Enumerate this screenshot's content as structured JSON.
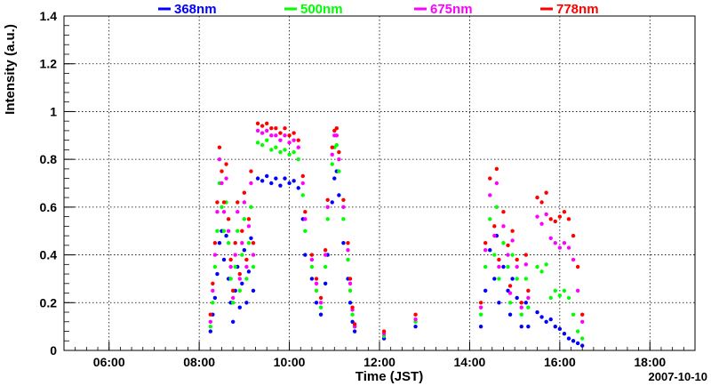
{
  "chart_data": {
    "type": "scatter",
    "title": "",
    "xlabel": "Time (JST)",
    "ylabel": "Intensity (a.u.)",
    "date_label": "2007-10-10",
    "x_units": "hours (JST)",
    "xlim": [
      5.0,
      19.0
    ],
    "ylim": [
      0,
      1.4
    ],
    "x_ticks": [
      {
        "value": 6,
        "label": "06:00"
      },
      {
        "value": 8,
        "label": "08:00"
      },
      {
        "value": 10,
        "label": "10:00"
      },
      {
        "value": 12,
        "label": "12:00"
      },
      {
        "value": 14,
        "label": "14:00"
      },
      {
        "value": 16,
        "label": "16:00"
      },
      {
        "value": 18,
        "label": "18:00"
      }
    ],
    "y_ticks": [
      {
        "value": 0,
        "label": "0"
      },
      {
        "value": 0.2,
        "label": "0.2"
      },
      {
        "value": 0.4,
        "label": "0.4"
      },
      {
        "value": 0.6,
        "label": "0.6"
      },
      {
        "value": 0.8,
        "label": "0.8"
      },
      {
        "value": 1.0,
        "label": "1"
      },
      {
        "value": 1.2,
        "label": "1.2"
      },
      {
        "value": 1.4,
        "label": "1.4"
      }
    ],
    "grid": true,
    "legend_position": "top",
    "series": [
      {
        "name": "368nm",
        "color": "#0000ff",
        "points": [
          [
            8.25,
            0.08
          ],
          [
            8.3,
            0.15
          ],
          [
            8.35,
            0.22
          ],
          [
            8.4,
            0.32
          ],
          [
            8.45,
            0.45
          ],
          [
            8.5,
            0.5
          ],
          [
            8.55,
            0.38
          ],
          [
            8.6,
            0.48
          ],
          [
            8.65,
            0.3
          ],
          [
            8.7,
            0.2
          ],
          [
            8.75,
            0.12
          ],
          [
            8.8,
            0.25
          ],
          [
            8.85,
            0.35
          ],
          [
            8.9,
            0.18
          ],
          [
            8.95,
            0.28
          ],
          [
            9.0,
            0.42
          ],
          [
            9.05,
            0.2
          ],
          [
            9.1,
            0.33
          ],
          [
            9.15,
            0.47
          ],
          [
            9.2,
            0.25
          ],
          [
            9.3,
            0.72
          ],
          [
            9.4,
            0.71
          ],
          [
            9.5,
            0.73
          ],
          [
            9.6,
            0.7
          ],
          [
            9.7,
            0.72
          ],
          [
            9.8,
            0.69
          ],
          [
            9.9,
            0.72
          ],
          [
            10.0,
            0.7
          ],
          [
            10.1,
            0.71
          ],
          [
            10.2,
            0.68
          ],
          [
            10.3,
            0.55
          ],
          [
            10.35,
            0.4
          ],
          [
            10.5,
            0.3
          ],
          [
            10.6,
            0.2
          ],
          [
            10.7,
            0.15
          ],
          [
            10.8,
            0.28
          ],
          [
            10.85,
            0.4
          ],
          [
            10.95,
            0.62
          ],
          [
            11.0,
            0.72
          ],
          [
            11.05,
            0.75
          ],
          [
            11.1,
            0.65
          ],
          [
            11.2,
            0.45
          ],
          [
            11.3,
            0.3
          ],
          [
            11.35,
            0.2
          ],
          [
            11.4,
            0.12
          ],
          [
            11.45,
            0.08
          ],
          [
            12.1,
            0.05
          ],
          [
            12.8,
            0.1
          ],
          [
            14.25,
            0.1
          ],
          [
            14.35,
            0.25
          ],
          [
            14.45,
            0.42
          ],
          [
            14.55,
            0.3
          ],
          [
            14.6,
            0.48
          ],
          [
            14.65,
            0.2
          ],
          [
            14.75,
            0.35
          ],
          [
            14.85,
            0.25
          ],
          [
            14.9,
            0.15
          ],
          [
            14.95,
            0.3
          ],
          [
            15.05,
            0.22
          ],
          [
            15.15,
            0.1
          ],
          [
            15.25,
            0.2
          ],
          [
            15.3,
            0.1
          ],
          [
            15.5,
            0.16
          ],
          [
            15.6,
            0.14
          ],
          [
            15.7,
            0.12
          ],
          [
            15.8,
            0.13
          ],
          [
            15.9,
            0.1
          ],
          [
            16.0,
            0.09
          ],
          [
            16.1,
            0.07
          ],
          [
            16.2,
            0.05
          ],
          [
            16.3,
            0.04
          ],
          [
            16.4,
            0.03
          ],
          [
            16.5,
            0.02
          ]
        ]
      },
      {
        "name": "500nm",
        "color": "#00ff00",
        "points": [
          [
            8.25,
            0.1
          ],
          [
            8.3,
            0.2
          ],
          [
            8.35,
            0.35
          ],
          [
            8.4,
            0.5
          ],
          [
            8.45,
            0.7
          ],
          [
            8.5,
            0.6
          ],
          [
            8.55,
            0.5
          ],
          [
            8.6,
            0.62
          ],
          [
            8.65,
            0.45
          ],
          [
            8.7,
            0.3
          ],
          [
            8.75,
            0.2
          ],
          [
            8.8,
            0.35
          ],
          [
            8.85,
            0.5
          ],
          [
            8.9,
            0.25
          ],
          [
            8.95,
            0.4
          ],
          [
            9.0,
            0.55
          ],
          [
            9.05,
            0.3
          ],
          [
            9.1,
            0.45
          ],
          [
            9.15,
            0.6
          ],
          [
            9.2,
            0.35
          ],
          [
            9.3,
            0.87
          ],
          [
            9.4,
            0.86
          ],
          [
            9.5,
            0.88
          ],
          [
            9.6,
            0.84
          ],
          [
            9.7,
            0.85
          ],
          [
            9.8,
            0.83
          ],
          [
            9.9,
            0.84
          ],
          [
            10.0,
            0.82
          ],
          [
            10.1,
            0.83
          ],
          [
            10.2,
            0.8
          ],
          [
            10.3,
            0.65
          ],
          [
            10.35,
            0.5
          ],
          [
            10.5,
            0.35
          ],
          [
            10.6,
            0.25
          ],
          [
            10.7,
            0.18
          ],
          [
            10.8,
            0.35
          ],
          [
            10.85,
            0.55
          ],
          [
            10.95,
            0.78
          ],
          [
            11.0,
            0.85
          ],
          [
            11.05,
            0.86
          ],
          [
            11.1,
            0.75
          ],
          [
            11.2,
            0.55
          ],
          [
            11.3,
            0.38
          ],
          [
            11.35,
            0.25
          ],
          [
            11.4,
            0.15
          ],
          [
            11.45,
            0.1
          ],
          [
            12.1,
            0.06
          ],
          [
            12.8,
            0.12
          ],
          [
            14.25,
            0.15
          ],
          [
            14.35,
            0.35
          ],
          [
            14.45,
            0.55
          ],
          [
            14.55,
            0.4
          ],
          [
            14.6,
            0.6
          ],
          [
            14.65,
            0.3
          ],
          [
            14.75,
            0.45
          ],
          [
            14.85,
            0.35
          ],
          [
            14.9,
            0.2
          ],
          [
            14.95,
            0.4
          ],
          [
            15.05,
            0.3
          ],
          [
            15.15,
            0.15
          ],
          [
            15.25,
            0.3
          ],
          [
            15.3,
            0.18
          ],
          [
            15.5,
            0.35
          ],
          [
            15.6,
            0.33
          ],
          [
            15.7,
            0.36
          ],
          [
            15.8,
            0.22
          ],
          [
            15.9,
            0.25
          ],
          [
            16.0,
            0.23
          ],
          [
            16.1,
            0.25
          ],
          [
            16.2,
            0.22
          ],
          [
            16.3,
            0.15
          ],
          [
            16.4,
            0.08
          ],
          [
            16.5,
            0.05
          ]
        ]
      },
      {
        "name": "675nm",
        "color": "#ff00ff",
        "points": [
          [
            8.25,
            0.12
          ],
          [
            8.3,
            0.25
          ],
          [
            8.35,
            0.4
          ],
          [
            8.4,
            0.58
          ],
          [
            8.45,
            0.8
          ],
          [
            8.5,
            0.7
          ],
          [
            8.55,
            0.58
          ],
          [
            8.6,
            0.72
          ],
          [
            8.65,
            0.5
          ],
          [
            8.7,
            0.35
          ],
          [
            8.75,
            0.22
          ],
          [
            8.8,
            0.4
          ],
          [
            8.85,
            0.58
          ],
          [
            8.9,
            0.3
          ],
          [
            8.95,
            0.45
          ],
          [
            9.0,
            0.62
          ],
          [
            9.05,
            0.35
          ],
          [
            9.1,
            0.52
          ],
          [
            9.15,
            0.7
          ],
          [
            9.2,
            0.4
          ],
          [
            9.3,
            0.92
          ],
          [
            9.4,
            0.91
          ],
          [
            9.5,
            0.92
          ],
          [
            9.6,
            0.9
          ],
          [
            9.7,
            0.9
          ],
          [
            9.8,
            0.88
          ],
          [
            9.9,
            0.9
          ],
          [
            10.0,
            0.87
          ],
          [
            10.1,
            0.88
          ],
          [
            10.2,
            0.85
          ],
          [
            10.3,
            0.7
          ],
          [
            10.35,
            0.55
          ],
          [
            10.5,
            0.38
          ],
          [
            10.6,
            0.28
          ],
          [
            10.7,
            0.2
          ],
          [
            10.8,
            0.4
          ],
          [
            10.85,
            0.6
          ],
          [
            10.95,
            0.82
          ],
          [
            11.0,
            0.9
          ],
          [
            11.05,
            0.9
          ],
          [
            11.1,
            0.8
          ],
          [
            11.2,
            0.6
          ],
          [
            11.3,
            0.42
          ],
          [
            11.35,
            0.28
          ],
          [
            11.4,
            0.17
          ],
          [
            11.45,
            0.1
          ],
          [
            12.1,
            0.07
          ],
          [
            12.8,
            0.13
          ],
          [
            14.25,
            0.18
          ],
          [
            14.35,
            0.42
          ],
          [
            14.45,
            0.65
          ],
          [
            14.55,
            0.48
          ],
          [
            14.6,
            0.7
          ],
          [
            14.65,
            0.35
          ],
          [
            14.75,
            0.52
          ],
          [
            14.85,
            0.4
          ],
          [
            14.9,
            0.24
          ],
          [
            14.95,
            0.46
          ],
          [
            15.05,
            0.35
          ],
          [
            15.15,
            0.18
          ],
          [
            15.25,
            0.36
          ],
          [
            15.3,
            0.22
          ],
          [
            15.5,
            0.56
          ],
          [
            15.6,
            0.53
          ],
          [
            15.7,
            0.57
          ],
          [
            15.8,
            0.47
          ],
          [
            15.9,
            0.45
          ],
          [
            16.0,
            0.43
          ],
          [
            16.1,
            0.45
          ],
          [
            16.2,
            0.43
          ],
          [
            16.3,
            0.38
          ],
          [
            16.4,
            0.25
          ],
          [
            16.5,
            0.12
          ]
        ]
      },
      {
        "name": "778nm",
        "color": "#ff0000",
        "points": [
          [
            8.25,
            0.15
          ],
          [
            8.3,
            0.28
          ],
          [
            8.35,
            0.45
          ],
          [
            8.4,
            0.62
          ],
          [
            8.45,
            0.85
          ],
          [
            8.5,
            0.75
          ],
          [
            8.55,
            0.62
          ],
          [
            8.6,
            0.78
          ],
          [
            8.65,
            0.55
          ],
          [
            8.7,
            0.38
          ],
          [
            8.75,
            0.25
          ],
          [
            8.8,
            0.45
          ],
          [
            8.85,
            0.62
          ],
          [
            8.9,
            0.32
          ],
          [
            8.95,
            0.5
          ],
          [
            9.0,
            0.66
          ],
          [
            9.05,
            0.38
          ],
          [
            9.1,
            0.55
          ],
          [
            9.15,
            0.75
          ],
          [
            9.2,
            0.45
          ],
          [
            9.3,
            0.95
          ],
          [
            9.4,
            0.94
          ],
          [
            9.5,
            0.95
          ],
          [
            9.6,
            0.93
          ],
          [
            9.7,
            0.93
          ],
          [
            9.8,
            0.91
          ],
          [
            9.9,
            0.93
          ],
          [
            10.0,
            0.9
          ],
          [
            10.1,
            0.91
          ],
          [
            10.2,
            0.88
          ],
          [
            10.3,
            0.73
          ],
          [
            10.35,
            0.58
          ],
          [
            10.5,
            0.4
          ],
          [
            10.6,
            0.3
          ],
          [
            10.7,
            0.22
          ],
          [
            10.8,
            0.42
          ],
          [
            10.85,
            0.63
          ],
          [
            10.95,
            0.85
          ],
          [
            11.0,
            0.92
          ],
          [
            11.05,
            0.93
          ],
          [
            11.1,
            0.83
          ],
          [
            11.2,
            0.63
          ],
          [
            11.3,
            0.45
          ],
          [
            11.35,
            0.3
          ],
          [
            11.4,
            0.18
          ],
          [
            11.45,
            0.11
          ],
          [
            12.1,
            0.08
          ],
          [
            12.8,
            0.15
          ],
          [
            14.25,
            0.2
          ],
          [
            14.35,
            0.45
          ],
          [
            14.45,
            0.72
          ],
          [
            14.55,
            0.52
          ],
          [
            14.6,
            0.76
          ],
          [
            14.65,
            0.38
          ],
          [
            14.75,
            0.58
          ],
          [
            14.85,
            0.44
          ],
          [
            14.9,
            0.27
          ],
          [
            14.95,
            0.5
          ],
          [
            15.05,
            0.38
          ],
          [
            15.15,
            0.2
          ],
          [
            15.25,
            0.4
          ],
          [
            15.3,
            0.25
          ],
          [
            15.5,
            0.64
          ],
          [
            15.6,
            0.62
          ],
          [
            15.7,
            0.66
          ],
          [
            15.8,
            0.55
          ],
          [
            15.9,
            0.54
          ],
          [
            16.0,
            0.56
          ],
          [
            16.1,
            0.58
          ],
          [
            16.2,
            0.55
          ],
          [
            16.3,
            0.48
          ],
          [
            16.4,
            0.35
          ],
          [
            16.5,
            0.15
          ]
        ]
      }
    ]
  }
}
